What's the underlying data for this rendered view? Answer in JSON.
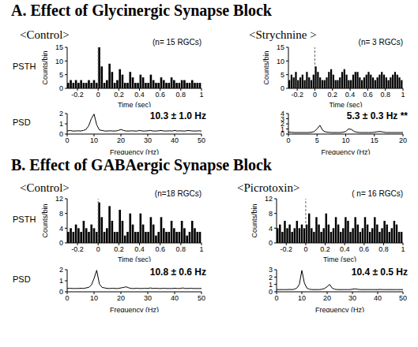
{
  "sections": [
    {
      "title": "A. Effect of Glycinergic Synapse Block",
      "conditions": [
        "<Control>",
        "<Strychnine >"
      ]
    },
    {
      "title": "B. Effect of GABAergic Synapse Block",
      "conditions": [
        "<Control>",
        "<Picrotoxin>"
      ]
    }
  ],
  "chart_data": [
    {
      "type": "histogram",
      "title": "PSTH",
      "ylabel": "Counts/bin",
      "xlabel": "Time (sec)",
      "annotations": [
        "(n= 15 RGCs)"
      ],
      "bins": [
        -0.3,
        -0.275,
        -0.25,
        -0.225,
        -0.2,
        -0.175,
        -0.15,
        -0.125,
        -0.1,
        -0.075,
        -0.05,
        -0.025,
        0,
        0.025,
        0.05,
        0.075,
        0.1,
        0.125,
        0.15,
        0.175,
        0.2,
        0.225,
        0.25,
        0.275,
        0.3,
        0.325,
        0.35,
        0.375,
        0.4,
        0.425,
        0.45,
        0.475,
        0.5,
        0.525,
        0.55,
        0.575,
        0.6,
        0.625,
        0.65,
        0.675,
        0.7,
        0.725,
        0.75,
        0.775,
        0.8,
        0.825,
        0.85,
        0.875,
        0.9,
        0.925,
        0.95,
        0.975,
        1.0
      ],
      "counts": [
        2,
        3,
        2,
        3,
        2,
        3,
        2,
        2,
        3,
        2,
        3,
        2,
        15,
        8,
        2,
        3,
        9,
        6,
        2,
        3,
        7,
        5,
        2,
        2,
        6,
        4,
        2,
        2,
        5,
        4,
        2,
        2,
        5,
        3,
        2,
        2,
        4,
        3,
        2,
        2,
        4,
        3,
        2,
        2,
        3,
        3,
        2,
        2,
        3,
        2,
        2,
        2
      ],
      "xlim": [
        -0.3,
        1
      ],
      "xticks": [
        -0.2,
        0,
        0.2,
        0.4,
        0.6,
        0.8,
        1
      ],
      "ylim": [
        0,
        15
      ],
      "yticks": [
        0,
        5,
        10,
        15
      ],
      "color": "#000000",
      "reference_line": 0
    },
    {
      "type": "line",
      "title": "PSD",
      "xlabel": "Frequency (Hz)",
      "annotations": [
        "10.3 ± 1.0 Hz"
      ],
      "x": [
        0,
        1,
        2,
        3,
        4,
        5,
        6,
        7,
        8,
        9,
        10,
        11,
        12,
        13,
        14,
        15,
        16,
        17,
        18,
        19,
        20,
        21,
        22,
        23,
        24,
        25,
        26,
        27,
        28,
        29,
        30,
        31,
        32,
        33,
        34,
        35,
        36,
        37,
        38,
        39,
        40,
        41,
        42,
        43,
        44,
        45,
        46,
        47,
        48,
        49,
        50
      ],
      "values": [
        0.3,
        0.35,
        0.3,
        0.3,
        0.32,
        0.3,
        0.35,
        0.45,
        0.8,
        1.5,
        1.95,
        0.9,
        0.4,
        0.35,
        0.3,
        0.3,
        0.32,
        0.3,
        0.3,
        0.35,
        0.45,
        0.35,
        0.3,
        0.3,
        0.32,
        0.3,
        0.3,
        0.35,
        0.3,
        0.3,
        0.32,
        0.35,
        0.3,
        0.3,
        0.32,
        0.35,
        0.3,
        0.3,
        0.32,
        0.3,
        0.35,
        0.3,
        0.32,
        0.3,
        0.3,
        0.35,
        0.32,
        0.3,
        0.3,
        0.32,
        0.3
      ],
      "xlim": [
        0,
        50
      ],
      "xticks": [
        0,
        10,
        20,
        30,
        40,
        50
      ],
      "ylim": [
        0,
        2
      ],
      "yticks": [
        0,
        1,
        2
      ],
      "color": "#000000"
    },
    {
      "type": "histogram",
      "ylabel": "Counts/bin",
      "xlabel": "Time (sec)",
      "annotations": [
        "(n= 3 RGCs)"
      ],
      "bins": [
        -0.3,
        -0.275,
        -0.25,
        -0.225,
        -0.2,
        -0.175,
        -0.15,
        -0.125,
        -0.1,
        -0.075,
        -0.05,
        -0.025,
        0,
        0.025,
        0.05,
        0.075,
        0.1,
        0.125,
        0.15,
        0.175,
        0.2,
        0.225,
        0.25,
        0.275,
        0.3,
        0.325,
        0.35,
        0.375,
        0.4,
        0.425,
        0.45,
        0.475,
        0.5,
        0.525,
        0.55,
        0.575,
        0.6,
        0.625,
        0.65,
        0.675,
        0.7,
        0.725,
        0.75,
        0.775,
        0.8,
        0.825,
        0.85,
        0.875,
        0.9,
        0.925,
        0.95,
        0.975,
        1.0
      ],
      "counts": [
        3,
        5,
        4,
        6,
        3,
        4,
        5,
        3,
        6,
        4,
        3,
        5,
        8,
        6,
        4,
        3,
        3,
        4,
        6,
        7,
        5,
        3,
        3,
        4,
        6,
        7,
        5,
        3,
        3,
        5,
        6,
        6,
        4,
        3,
        4,
        5,
        6,
        5,
        4,
        3,
        4,
        5,
        6,
        5,
        4,
        3,
        4,
        5,
        6,
        5,
        4,
        3
      ],
      "xlim": [
        -0.3,
        1
      ],
      "xticks": [
        -0.2,
        0,
        0.2,
        0.4,
        0.6,
        0.8,
        1
      ],
      "ylim": [
        0,
        15
      ],
      "yticks": [
        0,
        5,
        10,
        15
      ],
      "color": "#000000",
      "reference_line": 0
    },
    {
      "type": "line",
      "xlabel": "Frequency (Hz)",
      "annotations": [
        "5.3 ± 0.3 Hz **"
      ],
      "x": [
        0,
        0.5,
        1,
        1.5,
        2,
        2.5,
        3,
        3.5,
        4,
        4.5,
        5,
        5.5,
        6,
        6.5,
        7,
        7.5,
        8,
        8.5,
        9,
        9.5,
        10,
        10.5,
        11,
        11.5,
        12,
        12.5,
        13,
        13.5,
        14,
        14.5,
        15,
        15.5,
        16,
        16.5,
        17,
        17.5,
        18,
        18.5,
        19,
        19.5,
        20
      ],
      "values": [
        0.4,
        0.35,
        0.3,
        0.3,
        0.3,
        0.3,
        0.3,
        0.3,
        0.35,
        0.5,
        1.0,
        1.7,
        0.7,
        0.4,
        0.35,
        0.3,
        0.3,
        0.3,
        0.3,
        0.35,
        0.5,
        1.0,
        0.9,
        0.5,
        0.35,
        0.3,
        0.3,
        0.3,
        0.3,
        0.3,
        0.35,
        0.45,
        0.5,
        0.4,
        0.3,
        0.3,
        0.3,
        0.3,
        0.3,
        0.3,
        0.3
      ],
      "xlim": [
        0,
        20
      ],
      "xticks": [
        0,
        5,
        10,
        15,
        20
      ],
      "ylim": [
        0,
        4
      ],
      "yticks": [
        0,
        1,
        2,
        3,
        4
      ],
      "color": "#000000"
    },
    {
      "type": "histogram",
      "title": "PSTH",
      "ylabel": "Counts/bin",
      "xlabel": "Time (sec)",
      "annotations": [
        "(n=18 RGCs)"
      ],
      "bins": [
        -0.3,
        -0.275,
        -0.25,
        -0.225,
        -0.2,
        -0.175,
        -0.15,
        -0.125,
        -0.1,
        -0.075,
        -0.05,
        -0.025,
        0,
        0.025,
        0.05,
        0.075,
        0.1,
        0.125,
        0.15,
        0.175,
        0.2,
        0.225,
        0.25,
        0.275,
        0.3,
        0.325,
        0.35,
        0.375,
        0.4,
        0.425,
        0.45,
        0.475,
        0.5,
        0.525,
        0.55,
        0.575,
        0.6,
        0.625,
        0.65,
        0.675,
        0.7,
        0.725,
        0.75,
        0.775,
        0.8,
        0.825,
        0.85,
        0.875,
        0.9,
        0.925,
        0.95,
        0.975,
        1.0
      ],
      "counts": [
        3,
        4,
        3,
        5,
        4,
        3,
        6,
        4,
        3,
        5,
        4,
        3,
        11,
        7,
        3,
        4,
        10,
        6,
        3,
        3,
        9,
        6,
        2,
        3,
        8,
        5,
        3,
        3,
        8,
        5,
        3,
        3,
        7,
        5,
        2,
        3,
        7,
        4,
        3,
        3,
        6,
        4,
        3,
        3,
        6,
        4,
        2,
        3,
        6,
        4,
        3,
        3
      ],
      "xlim": [
        -0.3,
        1
      ],
      "xticks": [
        -0.2,
        0,
        0.2,
        0.4,
        0.6,
        0.8,
        1
      ],
      "ylim": [
        0,
        12
      ],
      "yticks": [
        0,
        4,
        8,
        12
      ],
      "color": "#000000",
      "reference_line": 0
    },
    {
      "type": "line",
      "title": "PSD",
      "xlabel": "Frequency (Hz)",
      "annotations": [
        "10.8 ± 0.6 Hz"
      ],
      "x": [
        0,
        1,
        2,
        3,
        4,
        5,
        6,
        7,
        8,
        9,
        10,
        11,
        12,
        13,
        14,
        15,
        16,
        17,
        18,
        19,
        20,
        21,
        22,
        23,
        24,
        25,
        26,
        27,
        28,
        29,
        30,
        31,
        32,
        33,
        34,
        35,
        36,
        37,
        38,
        39,
        40,
        41,
        42,
        43,
        44,
        45,
        46,
        47,
        48,
        49,
        50
      ],
      "values": [
        0.3,
        0.32,
        0.3,
        0.3,
        0.3,
        0.32,
        0.3,
        0.35,
        0.4,
        0.6,
        1.2,
        1.95,
        0.7,
        0.4,
        0.35,
        0.3,
        0.3,
        0.32,
        0.3,
        0.3,
        0.35,
        0.4,
        0.45,
        0.35,
        0.3,
        0.3,
        0.32,
        0.3,
        0.3,
        0.32,
        0.3,
        0.35,
        0.3,
        0.32,
        0.3,
        0.3,
        0.32,
        0.3,
        0.3,
        0.3,
        0.32,
        0.3,
        0.3,
        0.35,
        0.3,
        0.3,
        0.32,
        0.3,
        0.3,
        0.3,
        0.3
      ],
      "xlim": [
        0,
        50
      ],
      "xticks": [
        0,
        10,
        20,
        30,
        40,
        50
      ],
      "ylim": [
        0,
        2
      ],
      "yticks": [
        0,
        1,
        2
      ],
      "color": "#000000"
    },
    {
      "type": "histogram",
      "ylabel": "Counts/bin",
      "xlabel": "Time (sec)",
      "annotations": [
        "( n= 16 RGCs)"
      ],
      "bins": [
        -0.3,
        -0.275,
        -0.25,
        -0.225,
        -0.2,
        -0.175,
        -0.15,
        -0.125,
        -0.1,
        -0.075,
        -0.05,
        -0.025,
        0,
        0.025,
        0.05,
        0.075,
        0.1,
        0.125,
        0.15,
        0.175,
        0.2,
        0.225,
        0.25,
        0.275,
        0.3,
        0.325,
        0.35,
        0.375,
        0.4,
        0.425,
        0.45,
        0.475,
        0.5,
        0.525,
        0.55,
        0.575,
        0.6,
        0.625,
        0.65,
        0.675,
        0.7,
        0.725,
        0.75,
        0.775,
        0.8,
        0.825,
        0.85,
        0.875,
        0.9,
        0.925,
        0.95,
        0.975,
        1.0
      ],
      "counts": [
        4,
        5,
        3,
        6,
        4,
        5,
        3,
        4,
        6,
        4,
        5,
        4,
        5,
        8,
        4,
        3,
        7,
        5,
        3,
        4,
        8,
        5,
        3,
        4,
        7,
        5,
        3,
        4,
        7,
        6,
        3,
        4,
        7,
        5,
        3,
        4,
        7,
        5,
        3,
        4,
        7,
        5,
        3,
        4,
        6,
        5,
        3,
        4,
        6,
        5,
        3,
        3
      ],
      "xlim": [
        -0.3,
        1
      ],
      "xticks": [
        -0.2,
        0,
        0.2,
        0.4,
        0.6,
        0.8,
        1
      ],
      "ylim": [
        0,
        12
      ],
      "yticks": [
        0,
        4,
        8,
        12
      ],
      "color": "#000000",
      "reference_line": 0
    },
    {
      "type": "line",
      "xlabel": "Frequency (Hz)",
      "annotations": [
        "10.4 ± 0.5 Hz"
      ],
      "x": [
        0,
        1,
        2,
        3,
        4,
        5,
        6,
        7,
        8,
        9,
        10,
        11,
        12,
        13,
        14,
        15,
        16,
        17,
        18,
        19,
        20,
        21,
        22,
        23,
        24,
        25,
        26,
        27,
        28,
        29,
        30,
        31,
        32,
        33,
        34,
        35,
        36,
        37,
        38,
        39,
        40,
        41,
        42,
        43,
        44,
        45,
        46,
        47,
        48,
        49,
        50
      ],
      "values": [
        0.3,
        0.3,
        0.3,
        0.3,
        0.3,
        0.32,
        0.3,
        0.35,
        0.5,
        1.0,
        2.9,
        1.2,
        0.5,
        0.35,
        0.3,
        0.3,
        0.3,
        0.3,
        0.35,
        0.45,
        0.7,
        1.0,
        0.5,
        0.35,
        0.3,
        0.3,
        0.3,
        0.3,
        0.3,
        0.3,
        0.35,
        0.4,
        0.35,
        0.3,
        0.3,
        0.3,
        0.3,
        0.3,
        0.3,
        0.3,
        0.3,
        0.32,
        0.3,
        0.3,
        0.3,
        0.3,
        0.3,
        0.3,
        0.3,
        0.3,
        0.3
      ],
      "xlim": [
        0,
        50
      ],
      "xticks": [
        0,
        10,
        20,
        30,
        40,
        50
      ],
      "ylim": [
        0,
        3
      ],
      "yticks": [
        0,
        1,
        2,
        3
      ],
      "color": "#000000"
    }
  ]
}
